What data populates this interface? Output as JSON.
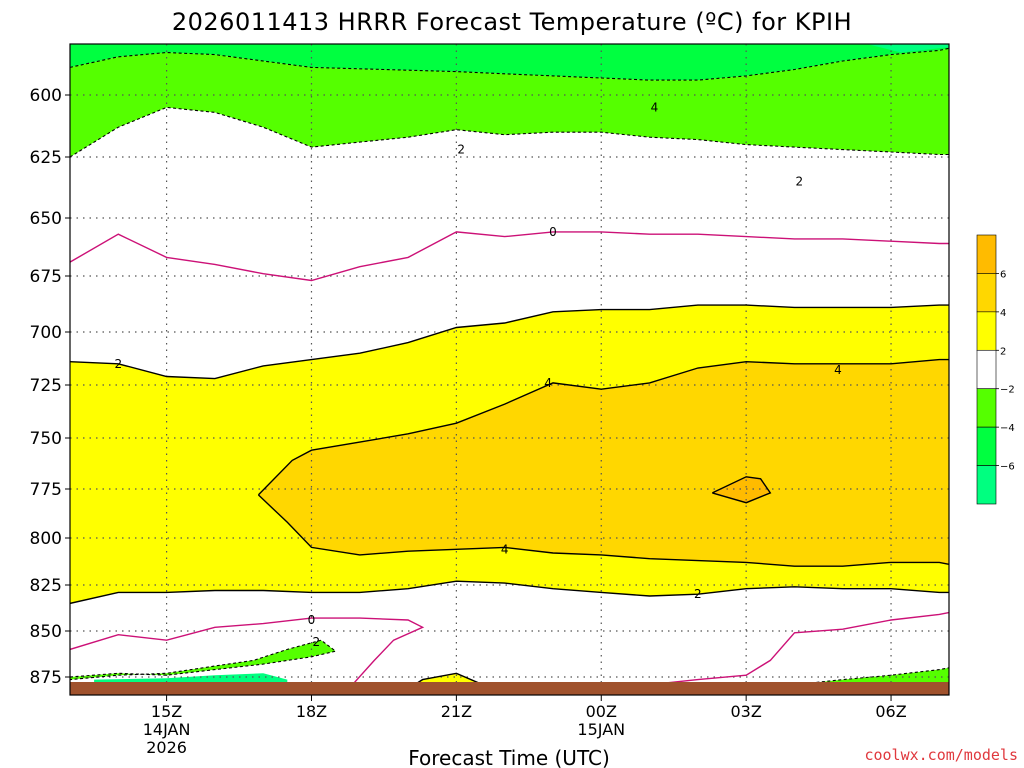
{
  "chart_data": {
    "type": "contour",
    "title": "2026011413 HRRR Forecast Temperature (ºC) for KPIH",
    "xlabel": "Forecast Time (UTC)",
    "ylabel": "",
    "credit": "coolwx.com/models",
    "y_scale": "pressure (hPa), decreasing upward",
    "ylim": [
      882,
      576
    ],
    "y_ticks": [
      600,
      625,
      650,
      675,
      700,
      725,
      750,
      775,
      800,
      825,
      850,
      875
    ],
    "xlim": [
      13,
      31.2
    ],
    "x_ticks": [
      {
        "hour": 15,
        "lines": [
          "15Z",
          "14JAN",
          "2026"
        ]
      },
      {
        "hour": 18,
        "lines": [
          "18Z"
        ]
      },
      {
        "hour": 21,
        "lines": [
          "21Z"
        ]
      },
      {
        "hour": 24,
        "lines": [
          "00Z",
          "15JAN"
        ]
      },
      {
        "hour": 27,
        "lines": [
          "03Z"
        ]
      },
      {
        "hour": 30,
        "lines": [
          "06Z"
        ]
      }
    ],
    "grid": true,
    "fill_levels": [
      {
        "range": "below -6",
        "color": "#00ff80"
      },
      {
        "range": "-6 to -4",
        "color": "#00ff40"
      },
      {
        "range": "-4 to -2",
        "color": "#55ff00"
      },
      {
        "range": "-2 to 2",
        "color": "#ffffff"
      },
      {
        "range": "2 to 4",
        "color": "#ffff00"
      },
      {
        "range": "4 to 6",
        "color": "#ffd700"
      },
      {
        "range": "above 6",
        "color": "#ffbb00"
      }
    ],
    "colorbar_ticks": [
      "6",
      "4",
      "2",
      "−2",
      "−4",
      "−6"
    ],
    "ground_color": "#a0522d",
    "contour_labels": [
      {
        "text": "4",
        "x": 25.1,
        "p": 605
      },
      {
        "text": "2",
        "x": 21.1,
        "p": 622
      },
      {
        "text": "2",
        "x": 28.1,
        "p": 635
      },
      {
        "text": "0",
        "x": 23.0,
        "p": 656
      },
      {
        "text": "2",
        "x": 14.0,
        "p": 715
      },
      {
        "text": "4",
        "x": 22.9,
        "p": 724
      },
      {
        "text": "4",
        "x": 28.9,
        "p": 718
      },
      {
        "text": "4",
        "x": 22.0,
        "p": 806
      },
      {
        "text": "2",
        "x": 26.0,
        "p": 830
      },
      {
        "text": "0",
        "x": 18.0,
        "p": 844
      },
      {
        "text": "2",
        "x": 18.1,
        "p": 856
      }
    ],
    "contours": [
      {
        "level": -4,
        "style": "dashed",
        "points": [
          [
            13,
            587
          ],
          [
            14,
            582
          ],
          [
            15,
            580
          ],
          [
            16,
            581
          ],
          [
            18,
            587
          ],
          [
            21,
            589
          ],
          [
            22,
            590
          ],
          [
            23,
            591
          ],
          [
            24,
            592
          ],
          [
            25,
            593
          ],
          [
            26,
            593
          ],
          [
            27,
            591
          ],
          [
            28,
            588
          ],
          [
            29,
            584
          ],
          [
            30,
            581
          ],
          [
            31,
            579
          ],
          [
            31.2,
            578
          ]
        ]
      },
      {
        "level": -2,
        "style": "dashed",
        "points": [
          [
            13,
            625
          ],
          [
            14,
            613
          ],
          [
            15,
            605
          ],
          [
            16,
            607
          ],
          [
            17,
            613
          ],
          [
            18,
            621
          ],
          [
            19,
            619
          ],
          [
            20,
            617
          ],
          [
            21,
            614
          ],
          [
            22,
            616
          ],
          [
            23,
            615
          ],
          [
            24,
            615
          ],
          [
            25,
            617
          ],
          [
            26,
            618
          ],
          [
            27,
            620
          ],
          [
            28,
            621
          ],
          [
            29,
            622
          ],
          [
            30,
            623
          ],
          [
            31,
            624
          ],
          [
            31.2,
            624
          ]
        ]
      },
      {
        "level": 0,
        "style": "solid",
        "color": "#cc1177",
        "points": [
          [
            13,
            669
          ],
          [
            14,
            657
          ],
          [
            15,
            667
          ],
          [
            16,
            670
          ],
          [
            17,
            674
          ],
          [
            18,
            677
          ],
          [
            19,
            671
          ],
          [
            20,
            667
          ],
          [
            21,
            656
          ],
          [
            22,
            658
          ],
          [
            23,
            656
          ],
          [
            24,
            656
          ],
          [
            25,
            657
          ],
          [
            26,
            657
          ],
          [
            27,
            658
          ],
          [
            28,
            659
          ],
          [
            29,
            659
          ],
          [
            30,
            660
          ],
          [
            31,
            661
          ],
          [
            31.2,
            661
          ]
        ]
      },
      {
        "level": 2,
        "style": "solid",
        "color": "#000000",
        "points": [
          [
            13,
            714
          ],
          [
            14,
            715
          ],
          [
            15,
            721
          ],
          [
            16,
            722
          ],
          [
            17,
            716
          ],
          [
            18,
            713
          ],
          [
            19,
            710
          ],
          [
            20,
            705
          ],
          [
            21,
            698
          ],
          [
            22,
            696
          ],
          [
            23,
            691
          ],
          [
            24,
            690
          ],
          [
            25,
            690
          ],
          [
            26,
            688
          ],
          [
            27,
            688
          ],
          [
            28,
            689
          ],
          [
            29,
            689
          ],
          [
            30,
            689
          ],
          [
            31,
            688
          ],
          [
            31.2,
            688
          ]
        ]
      },
      {
        "level": 4,
        "style": "solid",
        "color": "#000000",
        "points": [
          [
            16.9,
            778
          ],
          [
            17.6,
            761
          ],
          [
            18,
            756
          ],
          [
            19,
            752
          ],
          [
            20,
            748
          ],
          [
            21,
            743
          ],
          [
            22,
            734
          ],
          [
            23,
            724
          ],
          [
            24,
            727
          ],
          [
            25,
            724
          ],
          [
            26,
            717
          ],
          [
            27,
            714
          ],
          [
            28,
            715
          ],
          [
            29,
            715
          ],
          [
            30,
            715
          ],
          [
            31,
            713
          ],
          [
            31.2,
            713
          ]
        ]
      },
      {
        "level": 4,
        "style": "solid",
        "color": "#000000",
        "points": [
          [
            16.9,
            778
          ],
          [
            17.5,
            792
          ],
          [
            18,
            805
          ],
          [
            19,
            809
          ],
          [
            20,
            807
          ],
          [
            21,
            806
          ],
          [
            22,
            805
          ],
          [
            23,
            808
          ],
          [
            24,
            809
          ],
          [
            25,
            811
          ],
          [
            26,
            812
          ],
          [
            27,
            813
          ],
          [
            28,
            815
          ],
          [
            29,
            815
          ],
          [
            30,
            813
          ],
          [
            31,
            813
          ],
          [
            31.2,
            814
          ]
        ]
      },
      {
        "level": 6,
        "style": "solid",
        "color": "#000000",
        "points": [
          [
            26.3,
            777
          ],
          [
            27,
            769
          ],
          [
            27.3,
            770
          ],
          [
            27.5,
            777
          ],
          [
            27,
            782
          ],
          [
            26.3,
            777
          ]
        ]
      },
      {
        "level": 2,
        "style": "solid",
        "color": "#000000",
        "points": [
          [
            13,
            835
          ],
          [
            14,
            829
          ],
          [
            15,
            829
          ],
          [
            16,
            828
          ],
          [
            17,
            828
          ],
          [
            18,
            829
          ],
          [
            19,
            829
          ],
          [
            20,
            827
          ],
          [
            21,
            823
          ],
          [
            22,
            824
          ],
          [
            23,
            827
          ],
          [
            24,
            829
          ],
          [
            25,
            831
          ],
          [
            26,
            830
          ],
          [
            27,
            827
          ],
          [
            28,
            826
          ],
          [
            29,
            827
          ],
          [
            30,
            827
          ],
          [
            31,
            829
          ],
          [
            31.2,
            829
          ]
        ]
      },
      {
        "level": 0,
        "style": "solid",
        "color": "#cc1177",
        "points": [
          [
            13,
            860
          ],
          [
            14,
            852
          ],
          [
            15,
            855
          ],
          [
            16,
            848
          ],
          [
            17,
            846
          ],
          [
            18,
            843
          ],
          [
            19,
            843
          ],
          [
            20,
            844
          ],
          [
            20.3,
            848
          ],
          [
            19.7,
            855
          ],
          [
            19.3,
            866
          ],
          [
            18.8,
            879
          ],
          [
            18.5,
            882
          ]
        ]
      },
      {
        "level": 0,
        "style": "solid",
        "color": "#cc1177",
        "points": [
          [
            23,
            882
          ],
          [
            24,
            880
          ],
          [
            25,
            878
          ],
          [
            26,
            876
          ],
          [
            27,
            874
          ],
          [
            27.5,
            866
          ],
          [
            28,
            851
          ],
          [
            29,
            849
          ],
          [
            30,
            844
          ],
          [
            31,
            841
          ],
          [
            31.2,
            840
          ]
        ]
      },
      {
        "level": -2,
        "style": "dashed",
        "points": [
          [
            13,
            875
          ],
          [
            14,
            873
          ],
          [
            15,
            874
          ],
          [
            16,
            871
          ],
          [
            17,
            868
          ],
          [
            18,
            864
          ],
          [
            18.5,
            861
          ],
          [
            18.2,
            855
          ],
          [
            17.5,
            860
          ],
          [
            16.8,
            866
          ],
          [
            16,
            869
          ],
          [
            15,
            873
          ],
          [
            14,
            874
          ],
          [
            13,
            876
          ]
        ]
      },
      {
        "level": 2,
        "style": "solid",
        "color": "#000000",
        "points": [
          [
            19.8,
            882
          ],
          [
            20.3,
            876
          ],
          [
            21,
            873
          ],
          [
            21.8,
            880
          ],
          [
            22.2,
            882
          ]
        ]
      },
      {
        "level": -2,
        "style": "dashed",
        "points": [
          [
            28,
            878
          ],
          [
            29,
            876
          ],
          [
            30,
            874
          ],
          [
            31,
            871
          ],
          [
            31.2,
            870
          ]
        ]
      }
    ]
  }
}
